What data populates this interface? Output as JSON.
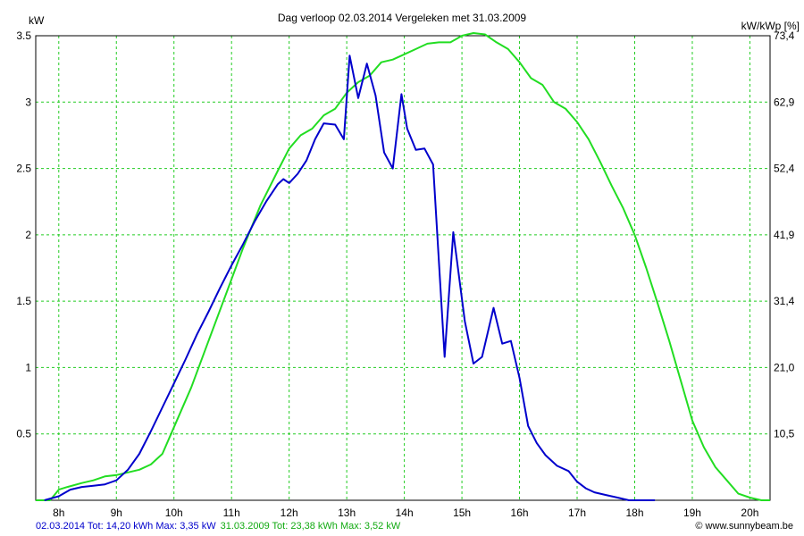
{
  "chart_data": {
    "type": "line",
    "title": "Dag  verloop 02.03.2014   Vergeleken met 31.03.2009",
    "ylabel_left": "kW",
    "ylabel_right": "kW/kWp [%]",
    "x_ticks": [
      "8h",
      "9h",
      "10h",
      "11h",
      "12h",
      "13h",
      "14h",
      "15h",
      "16h",
      "17h",
      "18h",
      "19h",
      "20h"
    ],
    "x_tick_values": [
      8,
      9,
      10,
      11,
      12,
      13,
      14,
      15,
      16,
      17,
      18,
      19,
      20
    ],
    "xlim": [
      7.6,
      20.35
    ],
    "ylim": [
      0,
      3.5
    ],
    "y_ticks_left": [
      "0.5",
      "1",
      "1.5",
      "2",
      "2.5",
      "3",
      "3.5"
    ],
    "y_tick_values": [
      0.5,
      1,
      1.5,
      2,
      2.5,
      3,
      3.5
    ],
    "y_ticks_right": [
      "10,5",
      "21,0",
      "31,4",
      "41,9",
      "52,4",
      "62,9",
      "73,4"
    ],
    "grid": true,
    "series": [
      {
        "name": "02.03.2014",
        "color": "#0000cc",
        "x": [
          7.75,
          8.0,
          8.2,
          8.4,
          8.6,
          8.8,
          9.0,
          9.2,
          9.4,
          9.6,
          9.8,
          10.0,
          10.2,
          10.4,
          10.6,
          10.8,
          11.0,
          11.2,
          11.4,
          11.6,
          11.8,
          11.9,
          12.0,
          12.15,
          12.3,
          12.45,
          12.6,
          12.8,
          12.95,
          13.05,
          13.2,
          13.35,
          13.5,
          13.65,
          13.8,
          13.95,
          14.05,
          14.2,
          14.35,
          14.5,
          14.7,
          14.85,
          15.05,
          15.2,
          15.35,
          15.55,
          15.7,
          15.85,
          16.0,
          16.15,
          16.3,
          16.45,
          16.65,
          16.85,
          17.0,
          17.15,
          17.3,
          17.5,
          17.7,
          17.9,
          18.1,
          18.35
        ],
        "y": [
          0.0,
          0.03,
          0.08,
          0.1,
          0.11,
          0.12,
          0.15,
          0.23,
          0.35,
          0.52,
          0.7,
          0.88,
          1.06,
          1.25,
          1.42,
          1.6,
          1.77,
          1.93,
          2.1,
          2.25,
          2.38,
          2.42,
          2.39,
          2.46,
          2.56,
          2.72,
          2.84,
          2.83,
          2.72,
          3.35,
          3.03,
          3.29,
          3.05,
          2.62,
          2.5,
          3.06,
          2.8,
          2.64,
          2.65,
          2.53,
          1.08,
          2.02,
          1.35,
          1.03,
          1.08,
          1.45,
          1.18,
          1.2,
          0.92,
          0.56,
          0.43,
          0.34,
          0.26,
          0.22,
          0.14,
          0.09,
          0.06,
          0.04,
          0.02,
          0.0,
          0.0,
          0.0
        ]
      },
      {
        "name": "31.03.2009",
        "color": "#22dd22",
        "x": [
          7.6,
          7.85,
          8.0,
          8.15,
          8.4,
          8.6,
          8.8,
          9.0,
          9.2,
          9.4,
          9.6,
          9.8,
          10.0,
          10.3,
          10.6,
          10.9,
          11.2,
          11.5,
          11.8,
          12.0,
          12.2,
          12.4,
          12.6,
          12.8,
          13.0,
          13.2,
          13.4,
          13.6,
          13.8,
          14.0,
          14.2,
          14.4,
          14.6,
          14.8,
          15.0,
          15.2,
          15.4,
          15.6,
          15.8,
          16.0,
          16.2,
          16.4,
          16.6,
          16.8,
          17.0,
          17.2,
          17.4,
          17.6,
          17.8,
          18.0,
          18.2,
          18.4,
          18.6,
          18.8,
          19.0,
          19.2,
          19.4,
          19.6,
          19.8,
          20.0,
          20.2,
          20.35
        ],
        "y": [
          0.0,
          0.0,
          0.08,
          0.1,
          0.13,
          0.15,
          0.18,
          0.19,
          0.21,
          0.23,
          0.27,
          0.35,
          0.55,
          0.85,
          1.2,
          1.55,
          1.9,
          2.22,
          2.48,
          2.65,
          2.75,
          2.8,
          2.9,
          2.95,
          3.07,
          3.15,
          3.2,
          3.3,
          3.32,
          3.36,
          3.4,
          3.44,
          3.45,
          3.45,
          3.5,
          3.52,
          3.51,
          3.45,
          3.4,
          3.3,
          3.18,
          3.13,
          3.0,
          2.95,
          2.85,
          2.72,
          2.55,
          2.37,
          2.2,
          2.0,
          1.75,
          1.48,
          1.2,
          0.9,
          0.6,
          0.4,
          0.25,
          0.15,
          0.05,
          0.02,
          0.0,
          0.0
        ]
      }
    ]
  },
  "footer": {
    "series1_summary": "02.03.2014 Tot: 14,20 kWh Max: 3,35 kW",
    "series1_color": "#0000cc",
    "series2_summary": "31.03.2009 Tot: 23,38 kWh Max: 3,52 kW",
    "series2_color": "#22dd22",
    "credit": "© www.sunnybeam.be"
  }
}
